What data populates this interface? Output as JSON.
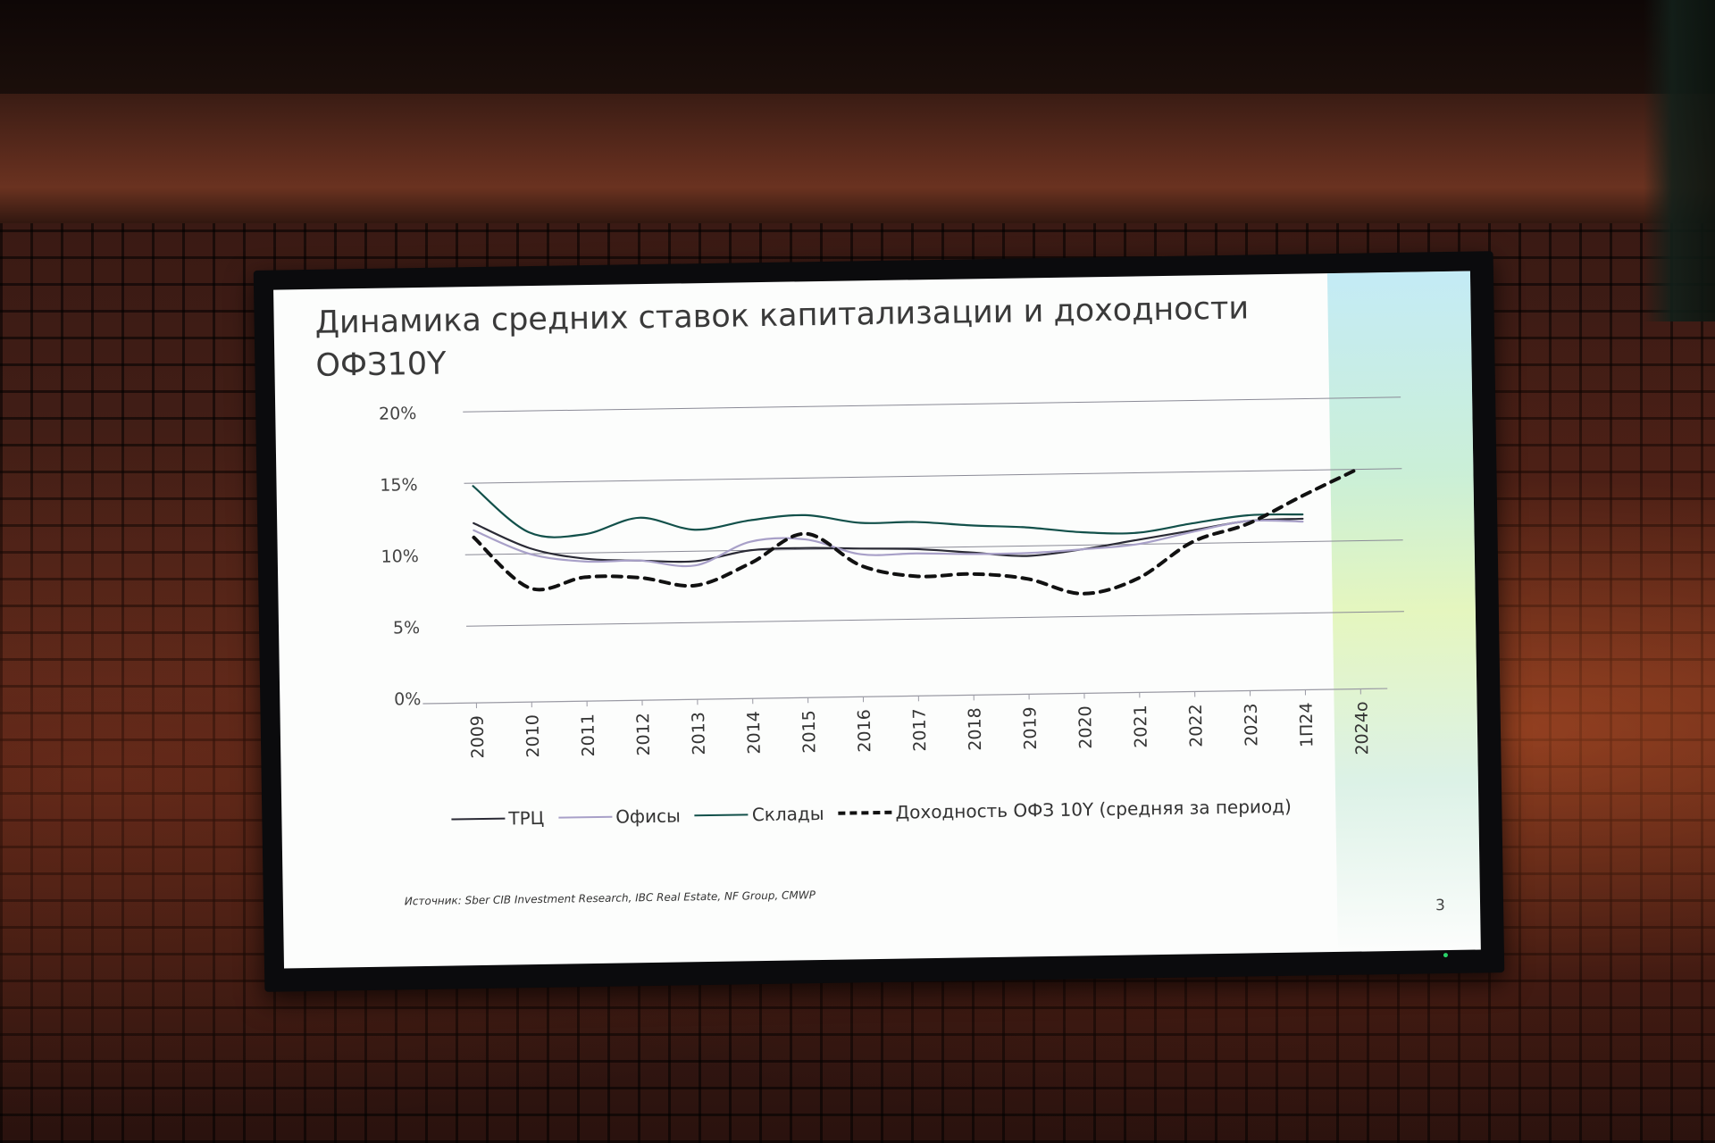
{
  "slide": {
    "title": "Динамика средних ставок капитализации и доходности ОФЗ10Y",
    "source": "Источник: Sber CIB Investment Research, IBC Real Estate, NF Group, CMWP",
    "page_number": "3"
  },
  "chart_data": {
    "type": "line",
    "categories": [
      "2009",
      "2010",
      "2011",
      "2012",
      "2013",
      "2014",
      "2015",
      "2016",
      "2017",
      "2018",
      "2019",
      "2020",
      "2021",
      "2022",
      "2023",
      "1П24",
      "2024о"
    ],
    "y_ticks": [
      "0%",
      "5%",
      "10%",
      "15%",
      "20%"
    ],
    "ylim": [
      0,
      20
    ],
    "grid": true,
    "legend_position": "bottom",
    "series": [
      {
        "name": "ТРЦ",
        "color": "#2a2a35",
        "style": "solid",
        "values": [
          12.2,
          10.4,
          9.6,
          9.4,
          9.3,
          10.0,
          10.1,
          10.0,
          9.9,
          9.6,
          9.3,
          9.7,
          10.3,
          10.9,
          11.5,
          11.6,
          null
        ]
      },
      {
        "name": "Офисы",
        "color": "#a8a0c8",
        "style": "solid",
        "values": [
          11.7,
          10.0,
          9.4,
          9.4,
          9.0,
          10.6,
          10.7,
          9.6,
          9.6,
          9.5,
          9.5,
          9.7,
          10.0,
          10.8,
          11.5,
          11.4,
          null
        ]
      },
      {
        "name": "Склады",
        "color": "#12504a",
        "style": "solid",
        "values": [
          14.8,
          11.5,
          11.3,
          12.4,
          11.5,
          12.1,
          12.4,
          11.8,
          11.8,
          11.5,
          11.3,
          10.9,
          10.8,
          11.4,
          11.9,
          11.9,
          null
        ]
      },
      {
        "name": "Доходность ОФЗ 10Y (средняя за период)",
        "color": "#111111",
        "style": "dashed",
        "values": [
          11.2,
          7.6,
          8.3,
          8.2,
          7.6,
          9.1,
          11.1,
          8.8,
          8.0,
          8.1,
          7.7,
          6.6,
          7.6,
          10.1,
          11.3,
          13.2,
          15.0
        ]
      }
    ]
  }
}
